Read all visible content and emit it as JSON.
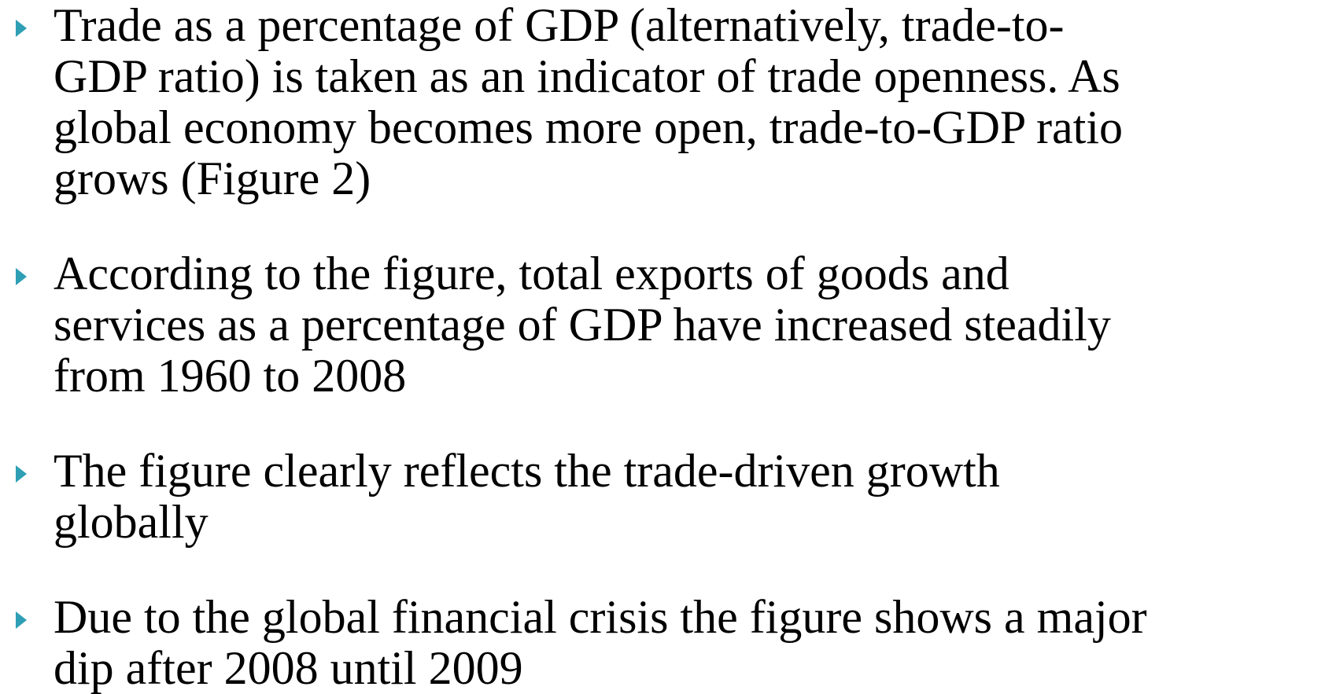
{
  "bullets": [
    {
      "lines": [
        "Trade as a percentage of GDP (alternatively, trade-to-",
        "GDP ratio) is taken as an indicator of trade openness. As",
        "global economy becomes more open, trade-to-GDP ratio",
        "grows (Figure 2)"
      ]
    },
    {
      "lines": [
        "According to the figure, total exports of goods and",
        "services as a percentage of GDP have increased steadily",
        "from 1960 to 2008"
      ]
    },
    {
      "lines": [
        "The figure clearly reflects the trade-driven growth",
        "globally"
      ]
    },
    {
      "lines": [
        "Due to the global financial crisis the figure shows a major",
        "dip after 2008 until 2009"
      ]
    }
  ]
}
